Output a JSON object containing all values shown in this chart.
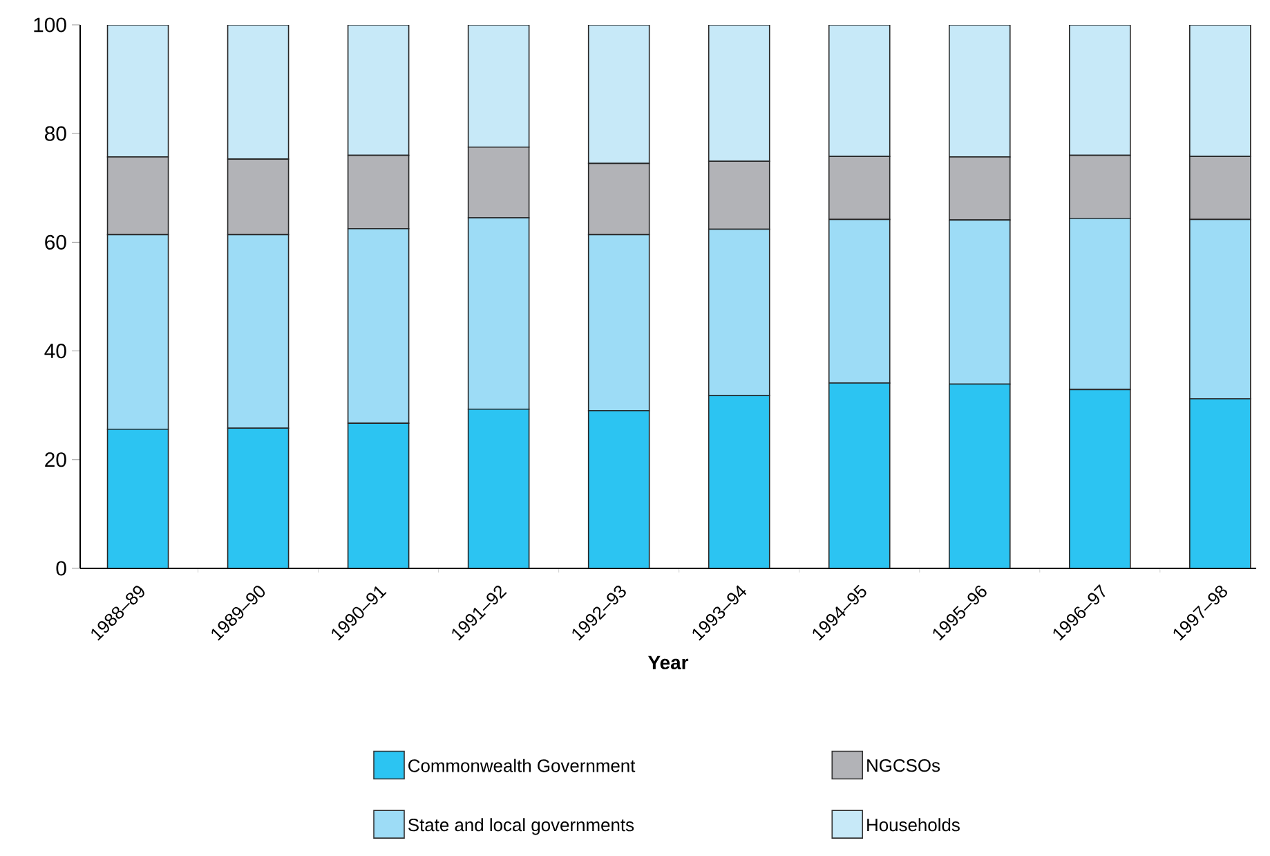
{
  "chart_data": {
    "type": "bar",
    "stacked": true,
    "xlabel": "Year",
    "categories": [
      "1988–89",
      "1989–90",
      "1990–91",
      "1991–92",
      "1992–93",
      "1993–94",
      "1994–95",
      "1995–96",
      "1996–97",
      "1997–98"
    ],
    "series": [
      {
        "name": "Commonwealth Government",
        "color": "#2cc4f2",
        "values": [
          25.6,
          25.8,
          26.7,
          29.3,
          29.0,
          31.8,
          34.1,
          33.9,
          32.9,
          31.2
        ]
      },
      {
        "name": "State and local governments",
        "color": "#9ddcf6",
        "values": [
          35.8,
          35.6,
          35.8,
          35.2,
          32.4,
          30.6,
          30.1,
          30.2,
          31.5,
          33.0
        ]
      },
      {
        "name": "NGCSOs",
        "color": "#b2b3b7",
        "values": [
          14.3,
          13.9,
          13.5,
          13.0,
          13.1,
          12.5,
          11.6,
          11.6,
          11.6,
          11.6
        ]
      },
      {
        "name": "Households",
        "color": "#c7e9f8",
        "values": [
          24.3,
          24.7,
          24.0,
          22.5,
          25.5,
          25.1,
          24.2,
          24.3,
          24.0,
          24.2
        ]
      }
    ],
    "ylim": [
      0,
      100
    ],
    "yticks": [
      0,
      20,
      40,
      60,
      80,
      100
    ],
    "grid": false,
    "legend": "bottom"
  }
}
